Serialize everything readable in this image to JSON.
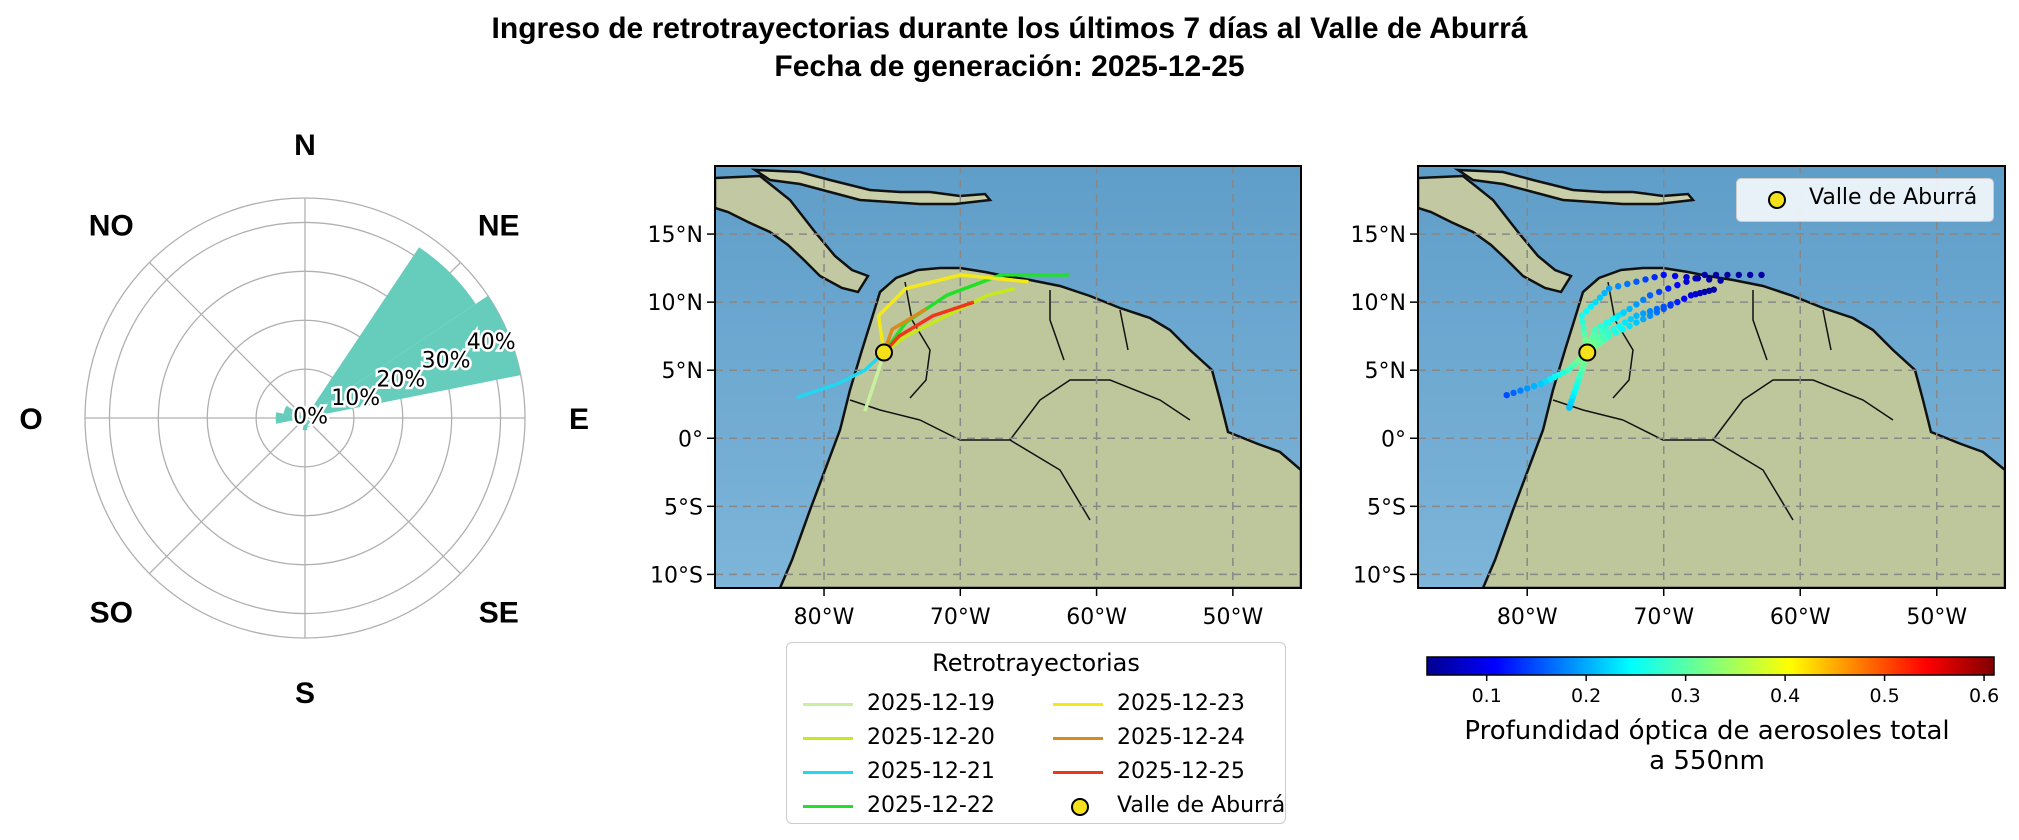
{
  "title": "Ingreso de retrotrayectorias durante los últimos 7 días al Valle de Aburrá",
  "subtitle": "Fecha de generación: 2025-12-25",
  "chart_data": [
    {
      "type": "polar-bar",
      "directions": [
        "N",
        "NE",
        "E",
        "SE",
        "S",
        "SO",
        "O",
        "NO"
      ],
      "sector_angles_deg": [
        0,
        22.5,
        45,
        67.5,
        90,
        112.5,
        135,
        157.5,
        180,
        202.5,
        225,
        247.5,
        270,
        292.5,
        315,
        337.5
      ],
      "values_percent": [
        1.5,
        0,
        42,
        45,
        0,
        0,
        1.5,
        2,
        2.5,
        0,
        0.5,
        1,
        6,
        4.5,
        0,
        0
      ],
      "rlim": [
        0,
        45
      ],
      "rticks": [
        0,
        10,
        20,
        30,
        40
      ],
      "rtick_labels": [
        "0%",
        "10%",
        "20%",
        "30%",
        "40%"
      ],
      "bar_color": "#66cdbd",
      "grid": true
    },
    {
      "type": "map-lines",
      "xlim": [
        -88,
        -45
      ],
      "ylim": [
        -11,
        20
      ],
      "xticks": [
        -80,
        -70,
        -60,
        -50
      ],
      "xtick_labels": [
        "80°W",
        "70°W",
        "60°W",
        "50°W"
      ],
      "yticks": [
        15,
        10,
        5,
        0,
        -5,
        -10
      ],
      "ytick_labels": [
        "15°N",
        "10°N",
        "5°N",
        "0°",
        "5°S",
        "10°S"
      ],
      "site": {
        "name": "Valle de Aburrá",
        "lon": -75.6,
        "lat": 6.3,
        "color": "#f5e11a"
      },
      "legend_title": "Retrotrayectorias",
      "series": [
        {
          "name": "2025-12-19",
          "color": "#c8f0a0",
          "points": [
            [
              -75.6,
              6.3
            ],
            [
              -76,
              5
            ],
            [
              -76.5,
              3.5
            ],
            [
              -77,
              2
            ]
          ]
        },
        {
          "name": "2025-12-20",
          "color": "#c8e81e",
          "points": [
            [
              -75.6,
              6.3
            ],
            [
              -74,
              7.5
            ],
            [
              -71,
              9
            ],
            [
              -68,
              10.5
            ],
            [
              -66,
              11
            ]
          ]
        },
        {
          "name": "2025-12-21",
          "color": "#22d8f0",
          "points": [
            [
              -75.6,
              6.3
            ],
            [
              -77,
              5
            ],
            [
              -79,
              4
            ],
            [
              -82,
              3
            ]
          ]
        },
        {
          "name": "2025-12-22",
          "color": "#22e02a",
          "points": [
            [
              -75.6,
              6.3
            ],
            [
              -74,
              8.5
            ],
            [
              -71,
              10.5
            ],
            [
              -67,
              12
            ],
            [
              -62,
              12
            ]
          ]
        },
        {
          "name": "2025-12-23",
          "color": "#f5e81a",
          "points": [
            [
              -75.6,
              6.3
            ],
            [
              -76,
              9
            ],
            [
              -74,
              11
            ],
            [
              -70,
              12
            ],
            [
              -65,
              11.5
            ]
          ]
        },
        {
          "name": "2025-12-24",
          "color": "#d88a1a",
          "points": [
            [
              -75.6,
              6.3
            ],
            [
              -75,
              8
            ],
            [
              -72.5,
              9.5
            ]
          ]
        },
        {
          "name": "2025-12-25",
          "color": "#f0361a",
          "points": [
            [
              -75.6,
              6.3
            ],
            [
              -74.5,
              7.5
            ],
            [
              -72,
              9
            ],
            [
              -69,
              10
            ]
          ]
        }
      ]
    },
    {
      "type": "map-scatter",
      "xlim": [
        -88,
        -45
      ],
      "ylim": [
        -11,
        20
      ],
      "xticks": [
        -80,
        -70,
        -60,
        -50
      ],
      "xtick_labels": [
        "80°W",
        "70°W",
        "60°W",
        "50°W"
      ],
      "yticks": [
        15,
        10,
        5,
        0,
        -5,
        -10
      ],
      "ytick_labels": [
        "15°N",
        "10°N",
        "5°N",
        "0°",
        "5°S",
        "10°S"
      ],
      "legend_label": "Valle de Aburrá",
      "colorbar_label_line1": "Profundidad óptica de aerosoles total",
      "colorbar_label_line2": "a 550nm",
      "colorbar_range": [
        0.04,
        0.61
      ],
      "colorbar_ticks": [
        0.1,
        0.2,
        0.3,
        0.4,
        0.5,
        0.6
      ],
      "colorbar_ticklabels": [
        "0.1",
        "0.2",
        "0.3",
        "0.4",
        "0.5",
        "0.6"
      ],
      "colormap": "jet"
    }
  ]
}
